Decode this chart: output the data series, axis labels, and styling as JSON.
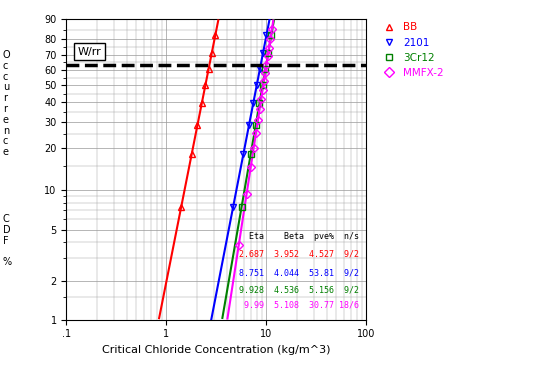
{
  "xlabel": "Critical Chloride Concentration (kg/m^3)",
  "ytick_percents": [
    1,
    2,
    5,
    10,
    20,
    30,
    40,
    50,
    60,
    70,
    80,
    90
  ],
  "xlim_log": [
    -1,
    2
  ],
  "dashed_line_pct": 63.2,
  "series": [
    {
      "name": "BB",
      "color": "#ff0000",
      "marker": "^",
      "eta": 2.687,
      "beta": 3.952,
      "pve": "4.527",
      "ns": "9/2",
      "n_pts": 9
    },
    {
      "name": "2101",
      "color": "#0000ff",
      "marker": "v",
      "eta": 8.751,
      "beta": 4.044,
      "pve": "53.81",
      "ns": "9/2",
      "n_pts": 9
    },
    {
      "name": "3Cr12",
      "color": "#008000",
      "marker": "s",
      "eta": 9.928,
      "beta": 4.536,
      "pve": "5.156",
      "ns": "9/2",
      "n_pts": 9
    },
    {
      "name": "MMFX-2",
      "color": "#ff00ff",
      "marker": "D",
      "eta": 9.99,
      "beta": 5.108,
      "pve": "30.77",
      "ns": "18/6",
      "n_pts": 18
    }
  ],
  "table_header": "  Eta    Beta  pve%  n/s",
  "table_rows": [
    {
      "text": "2.687  3.952  4.527  9/2",
      "color": "#ff0000"
    },
    {
      "text": "8.751  4.044  53.81  9/2",
      "color": "#0000ff"
    },
    {
      "text": "9.928  4.536  5.156  9/2",
      "color": "#008000"
    },
    {
      "text": " 9.99  5.108  30.77 18/6",
      "color": "#ff00ff"
    }
  ],
  "wlrr_label": "W/rr",
  "background_color": "#ffffff",
  "grid_color": "#999999",
  "ylabel_top": "O\nc\nc\nu\nr\nr\ne\nn\nc\ne",
  "ylabel_bot": "C\nD\nF\n\n%"
}
